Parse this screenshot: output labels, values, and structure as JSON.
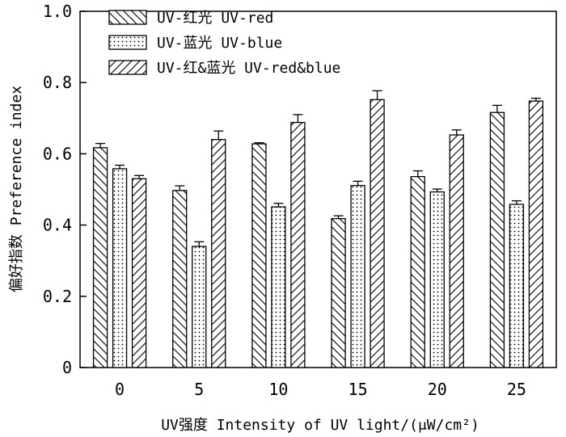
{
  "chart_data": {
    "type": "bar",
    "title": "",
    "xlabel": "UV强度 Intensity of UV light/(μW/cm²)",
    "ylabel": "偏好指数 Preference index",
    "ylim": [
      0,
      1.0
    ],
    "yticks": [
      "0",
      "0.2",
      "0.4",
      "0.6",
      "0.8",
      "1.0"
    ],
    "yticks_values": [
      0,
      0.2,
      0.4,
      0.6,
      0.8,
      1.0
    ],
    "categories": [
      "0",
      "5",
      "10",
      "15",
      "20",
      "25"
    ],
    "legend_position": "top-left",
    "series": [
      {
        "name": "UV-红光 UV-red",
        "pattern": "backslash",
        "values": [
          0.617,
          0.497,
          0.628,
          0.418,
          0.536,
          0.716
        ],
        "errors": [
          0.012,
          0.013,
          0.003,
          0.008,
          0.016,
          0.02
        ]
      },
      {
        "name": "UV-蓝光 UV-blue",
        "pattern": "dots",
        "values": [
          0.558,
          0.34,
          0.451,
          0.511,
          0.493,
          0.458
        ],
        "errors": [
          0.01,
          0.013,
          0.01,
          0.012,
          0.008,
          0.01
        ]
      },
      {
        "name": "UV-红&蓝光 UV-red&blue",
        "pattern": "slash",
        "values": [
          0.53,
          0.64,
          0.688,
          0.752,
          0.653,
          0.748
        ],
        "errors": [
          0.009,
          0.024,
          0.022,
          0.025,
          0.014,
          0.008
        ]
      }
    ]
  }
}
